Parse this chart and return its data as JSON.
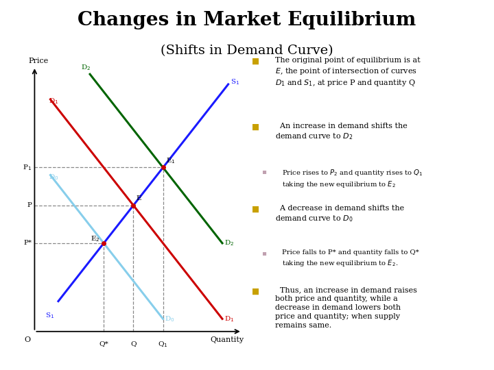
{
  "title": "Changes in Market Equilibrium",
  "subtitle": "(Shifts in Demand Curve)",
  "title_fontsize": 20,
  "subtitle_fontsize": 14,
  "background_color": "#ffffff",
  "supply_color": "#1a1aff",
  "demand0_color": "#87ceeb",
  "demand1_color": "#cc0000",
  "demand2_color": "#006400",
  "dashed_color": "#888888",
  "bullet_color": "#c8a000",
  "sub_bullet_color": "#c0a0b0",
  "E": [
    5.0,
    5.0
  ],
  "E1": [
    6.5,
    6.5
  ],
  "E2": [
    3.5,
    3.5
  ]
}
